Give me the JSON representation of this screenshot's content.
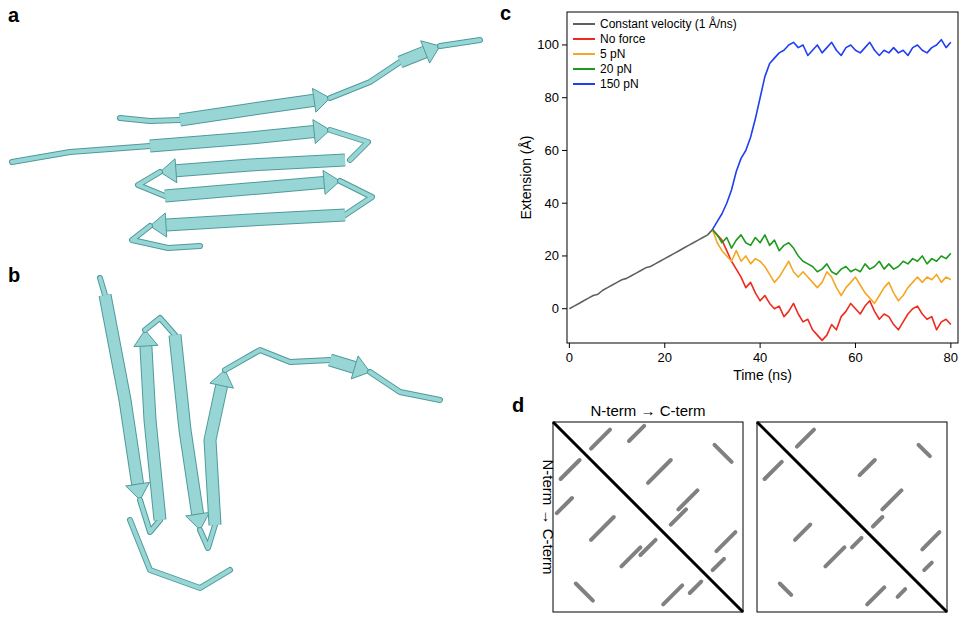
{
  "panels": [
    {
      "letter": "a"
    },
    {
      "letter": "b"
    },
    {
      "letter": "c"
    },
    {
      "letter": "d"
    }
  ],
  "chart_data": {
    "type": "line",
    "x_label": "Time (ns)",
    "y_label": "Extension (Å)",
    "xlim": [
      -0.5,
      81.5
    ],
    "ylim": [
      -13,
      112.5
    ],
    "xticks": [
      0,
      20,
      40,
      60,
      80
    ],
    "yticks": [
      0,
      20,
      40,
      60,
      80,
      100
    ],
    "grid": false,
    "legend": "upper left",
    "series": [
      {
        "name": "Constant velocity (1 Å/ns)",
        "color": "#606060",
        "x": [
          0,
          1,
          2,
          3,
          4,
          5,
          6,
          7,
          8,
          9,
          10,
          11,
          12,
          13,
          14,
          15,
          16,
          17,
          18,
          19,
          20,
          21,
          22,
          23,
          24,
          25,
          26,
          27,
          28,
          29,
          30
        ],
        "values": [
          0,
          1,
          2,
          3,
          4,
          5,
          5.5,
          7,
          8,
          9,
          10,
          11,
          11.5,
          12.5,
          13.5,
          14.5,
          15.5,
          16,
          17,
          18,
          19,
          20,
          21,
          22,
          23,
          24,
          25,
          26,
          27,
          28,
          30
        ]
      },
      {
        "name": "No force",
        "color": "#ee2a1f",
        "x": [
          30,
          31,
          32,
          33,
          34,
          35,
          36,
          37,
          38,
          39,
          40,
          41,
          42,
          43,
          44,
          45,
          46,
          47,
          48,
          49,
          50,
          51,
          52,
          53,
          54,
          55,
          56,
          57,
          58,
          59,
          60,
          61,
          62,
          63,
          64,
          65,
          66,
          67,
          68,
          69,
          70,
          71,
          72,
          73,
          74,
          75,
          76,
          77,
          78,
          79,
          80
        ],
        "values": [
          30,
          28,
          26,
          22,
          18,
          15,
          12,
          8,
          10,
          6,
          3,
          5,
          2,
          0,
          1,
          -3,
          -1,
          2,
          -2,
          -5,
          -4,
          -8,
          -10,
          -12,
          -10,
          -6,
          -8,
          -3,
          -1,
          2,
          0,
          -2,
          1,
          3,
          -1,
          -4,
          -2,
          -3,
          -6,
          -8,
          -5,
          -2,
          0,
          1,
          -2,
          -4,
          -3,
          -8,
          -5,
          -4,
          -6
        ]
      },
      {
        "name": "5 pN",
        "color": "#f5a623",
        "x": [
          30,
          31,
          32,
          33,
          34,
          35,
          36,
          37,
          38,
          39,
          40,
          41,
          42,
          43,
          44,
          45,
          46,
          47,
          48,
          49,
          50,
          51,
          52,
          53,
          54,
          55,
          56,
          57,
          58,
          59,
          60,
          61,
          62,
          63,
          64,
          65,
          66,
          67,
          68,
          69,
          70,
          71,
          72,
          73,
          74,
          75,
          76,
          77,
          78,
          79,
          80
        ],
        "values": [
          30,
          25,
          22,
          20,
          18,
          22,
          18,
          20,
          17,
          19,
          18,
          16,
          13,
          10,
          12,
          15,
          18,
          14,
          12,
          14,
          12,
          10,
          8,
          10,
          14,
          12,
          8,
          5,
          8,
          10,
          12,
          9,
          6,
          4,
          2,
          5,
          8,
          10,
          6,
          3,
          5,
          8,
          10,
          12,
          10,
          12,
          11,
          13,
          10,
          12,
          11
        ]
      },
      {
        "name": "20 pN",
        "color": "#1f9a1f",
        "x": [
          30,
          31,
          32,
          33,
          34,
          35,
          36,
          37,
          38,
          39,
          40,
          41,
          42,
          43,
          44,
          45,
          46,
          47,
          48,
          49,
          50,
          51,
          52,
          53,
          54,
          55,
          56,
          57,
          58,
          59,
          60,
          61,
          62,
          63,
          64,
          65,
          66,
          67,
          68,
          69,
          70,
          71,
          72,
          73,
          74,
          75,
          76,
          77,
          78,
          79,
          80
        ],
        "values": [
          30,
          28,
          25,
          27,
          23,
          26,
          28,
          25,
          24,
          27,
          25,
          28,
          24,
          26,
          22,
          24,
          25,
          23,
          20,
          18,
          17,
          16,
          14,
          15,
          17,
          14,
          13,
          15,
          16,
          14,
          15,
          14,
          17,
          15,
          16,
          18,
          15,
          17,
          15,
          16,
          18,
          17,
          19,
          18,
          20,
          17,
          19,
          18,
          20,
          19,
          21
        ]
      },
      {
        "name": "150 pN",
        "color": "#1f3ff0",
        "x": [
          30,
          31,
          32,
          33,
          34,
          35,
          36,
          37,
          38,
          39,
          40,
          41,
          42,
          43,
          44,
          45,
          46,
          47,
          48,
          49,
          50,
          51,
          52,
          53,
          54,
          55,
          56,
          57,
          58,
          59,
          60,
          61,
          62,
          63,
          64,
          65,
          66,
          67,
          68,
          69,
          70,
          71,
          72,
          73,
          74,
          75,
          76,
          77,
          78,
          79,
          80
        ],
        "values": [
          30,
          33,
          36,
          40,
          45,
          52,
          57,
          60,
          65,
          72,
          80,
          88,
          93,
          95,
          97,
          98,
          100,
          101,
          99,
          100,
          96,
          98,
          100,
          97,
          99,
          101,
          98,
          96,
          99,
          100,
          98,
          97,
          99,
          101,
          98,
          96,
          98,
          97,
          99,
          97,
          98,
          96,
          99,
          100,
          98,
          97,
          99,
          100,
          102,
          99,
          101
        ]
      }
    ]
  },
  "contact_maps": {
    "x_label": "N-term → C-term",
    "y_label": "N-term → C-term",
    "range": [
      0,
      100
    ],
    "maps": [
      {
        "stripes": [
          {
            "i": 4,
            "j": 30,
            "length": 10,
            "direction": "anti"
          },
          {
            "i": 2,
            "j": 48,
            "length": 8,
            "direction": "anti"
          },
          {
            "i": 20,
            "j": 62,
            "length": 12,
            "direction": "anti"
          },
          {
            "i": 12,
            "j": 85,
            "length": 9,
            "direction": "parallel"
          },
          {
            "i": 36,
            "j": 76,
            "length": 10,
            "direction": "anti"
          },
          {
            "i": 46,
            "j": 70,
            "length": 8,
            "direction": "anti"
          },
          {
            "i": 58,
            "j": 96,
            "length": 10,
            "direction": "anti"
          },
          {
            "i": 72,
            "j": 90,
            "length": 6,
            "direction": "anti"
          }
        ]
      },
      {
        "stripes": [
          {
            "i": 4,
            "j": 30,
            "length": 9,
            "direction": "anti"
          },
          {
            "i": 20,
            "j": 62,
            "length": 8,
            "direction": "anti"
          },
          {
            "i": 12,
            "j": 85,
            "length": 6,
            "direction": "parallel"
          },
          {
            "i": 36,
            "j": 76,
            "length": 10,
            "direction": "anti"
          },
          {
            "i": 50,
            "j": 66,
            "length": 5,
            "direction": "anti"
          },
          {
            "i": 58,
            "j": 96,
            "length": 9,
            "direction": "anti"
          },
          {
            "i": 74,
            "j": 92,
            "length": 4,
            "direction": "anti"
          }
        ]
      }
    ]
  }
}
